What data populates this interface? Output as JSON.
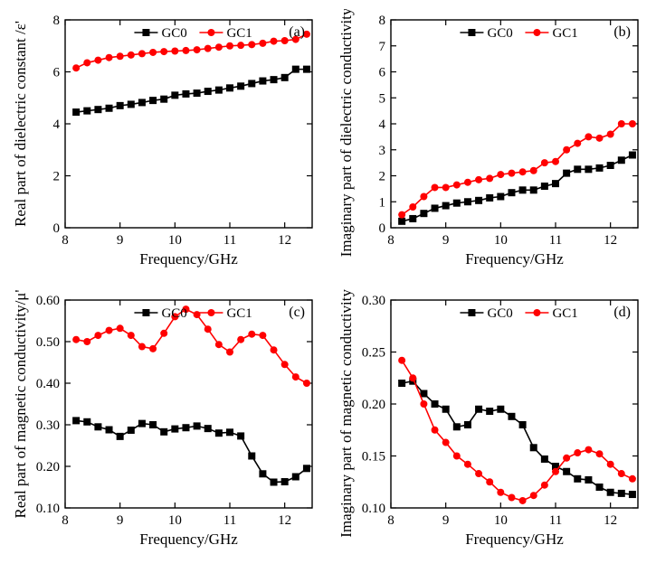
{
  "figure": {
    "background_color": "#ffffff",
    "axis_color": "#000000",
    "tick_fontsize": 15,
    "label_fontsize": 17,
    "legend_fontsize": 15,
    "marker_size": 4,
    "line_width": 1.6,
    "series_styles": {
      "GC0": {
        "color": "#000000",
        "marker": "square",
        "label": "GC0"
      },
      "GC1": {
        "color": "#ff0000",
        "marker": "circle",
        "label": "GC1"
      }
    },
    "panels": [
      {
        "id": "a",
        "tag": "(a)",
        "xlabel": "Frequency/GHz",
        "ylabel": "Real part of dielectric constant /ε'",
        "xlim": [
          8,
          12.5
        ],
        "ylim": [
          0,
          8
        ],
        "xticks": [
          8,
          9,
          10,
          11,
          12
        ],
        "yticks": [
          0,
          2,
          4,
          6,
          8
        ],
        "type": "line+marker",
        "legend_pos": "top-center",
        "series": [
          {
            "name": "GC0",
            "x": [
              8.2,
              8.4,
              8.6,
              8.8,
              9.0,
              9.2,
              9.4,
              9.6,
              9.8,
              10.0,
              10.2,
              10.4,
              10.6,
              10.8,
              11.0,
              11.2,
              11.4,
              11.6,
              11.8,
              12.0,
              12.2,
              12.4
            ],
            "y": [
              4.45,
              4.5,
              4.55,
              4.6,
              4.7,
              4.75,
              4.82,
              4.9,
              4.95,
              5.1,
              5.15,
              5.18,
              5.25,
              5.3,
              5.38,
              5.45,
              5.55,
              5.65,
              5.7,
              5.78,
              6.1,
              6.1
            ]
          },
          {
            "name": "GC1",
            "x": [
              8.2,
              8.4,
              8.6,
              8.8,
              9.0,
              9.2,
              9.4,
              9.6,
              9.8,
              10.0,
              10.2,
              10.4,
              10.6,
              10.8,
              11.0,
              11.2,
              11.4,
              11.6,
              11.8,
              12.0,
              12.2,
              12.4
            ],
            "y": [
              6.15,
              6.35,
              6.45,
              6.55,
              6.6,
              6.65,
              6.7,
              6.75,
              6.78,
              6.8,
              6.82,
              6.85,
              6.9,
              6.95,
              7.0,
              7.02,
              7.05,
              7.1,
              7.18,
              7.2,
              7.25,
              7.45
            ]
          }
        ]
      },
      {
        "id": "b",
        "tag": "(b)",
        "xlabel": "Frequency/GHz",
        "ylabel": "Imaginary part of dielectric conductivity/ε\"",
        "xlim": [
          8,
          12.5
        ],
        "ylim": [
          0,
          8
        ],
        "xticks": [
          8,
          9,
          10,
          11,
          12
        ],
        "yticks": [
          0,
          1,
          2,
          3,
          4,
          5,
          6,
          7,
          8
        ],
        "type": "line+marker",
        "legend_pos": "top-center",
        "series": [
          {
            "name": "GC0",
            "x": [
              8.2,
              8.4,
              8.6,
              8.8,
              9.0,
              9.2,
              9.4,
              9.6,
              9.8,
              10.0,
              10.2,
              10.4,
              10.6,
              10.8,
              11.0,
              11.2,
              11.4,
              11.6,
              11.8,
              12.0,
              12.2,
              12.4
            ],
            "y": [
              0.25,
              0.35,
              0.55,
              0.75,
              0.85,
              0.95,
              1.0,
              1.05,
              1.15,
              1.2,
              1.35,
              1.45,
              1.45,
              1.6,
              1.7,
              2.1,
              2.25,
              2.25,
              2.3,
              2.4,
              2.6,
              2.8
            ]
          },
          {
            "name": "GC1",
            "x": [
              8.2,
              8.4,
              8.6,
              8.8,
              9.0,
              9.2,
              9.4,
              9.6,
              9.8,
              10.0,
              10.2,
              10.4,
              10.6,
              10.8,
              11.0,
              11.2,
              11.4,
              11.6,
              11.8,
              12.0,
              12.2,
              12.4
            ],
            "y": [
              0.5,
              0.8,
              1.2,
              1.55,
              1.55,
              1.65,
              1.75,
              1.85,
              1.9,
              2.05,
              2.1,
              2.15,
              2.2,
              2.5,
              2.55,
              3.0,
              3.25,
              3.5,
              3.45,
              3.6,
              4.0,
              4.0
            ]
          }
        ]
      },
      {
        "id": "c",
        "tag": "(c)",
        "xlabel": "Frequency/GHz",
        "ylabel": "Real part of magnetic conductivity/μ'",
        "xlim": [
          8,
          12.5
        ],
        "ylim": [
          0.1,
          0.6
        ],
        "xticks": [
          8,
          9,
          10,
          11,
          12
        ],
        "yticks": [
          0.1,
          0.2,
          0.3,
          0.4,
          0.5,
          0.6
        ],
        "type": "line+marker",
        "legend_pos": "top-center",
        "series": [
          {
            "name": "GC0",
            "x": [
              8.2,
              8.4,
              8.6,
              8.8,
              9.0,
              9.2,
              9.4,
              9.6,
              9.8,
              10.0,
              10.2,
              10.4,
              10.6,
              10.8,
              11.0,
              11.2,
              11.4,
              11.6,
              11.8,
              12.0,
              12.2,
              12.4
            ],
            "y": [
              0.31,
              0.307,
              0.295,
              0.288,
              0.272,
              0.287,
              0.303,
              0.3,
              0.283,
              0.29,
              0.293,
              0.297,
              0.291,
              0.28,
              0.282,
              0.273,
              0.225,
              0.182,
              0.162,
              0.163,
              0.175,
              0.195
            ]
          },
          {
            "name": "GC1",
            "x": [
              8.2,
              8.4,
              8.6,
              8.8,
              9.0,
              9.2,
              9.4,
              9.6,
              9.8,
              10.0,
              10.2,
              10.4,
              10.6,
              10.8,
              11.0,
              11.2,
              11.4,
              11.6,
              11.8,
              12.0,
              12.2,
              12.4
            ],
            "y": [
              0.505,
              0.5,
              0.515,
              0.527,
              0.532,
              0.515,
              0.488,
              0.483,
              0.52,
              0.56,
              0.578,
              0.565,
              0.53,
              0.493,
              0.475,
              0.505,
              0.518,
              0.515,
              0.48,
              0.445,
              0.415,
              0.4
            ]
          }
        ]
      },
      {
        "id": "d",
        "tag": "(d)",
        "xlabel": "Frequency/GHz",
        "ylabel": "Imaginary part of magnetic conductivity/μ\"",
        "xlim": [
          8,
          12.5
        ],
        "ylim": [
          0.1,
          0.3
        ],
        "xticks": [
          8,
          9,
          10,
          11,
          12
        ],
        "yticks": [
          0.1,
          0.15,
          0.2,
          0.25,
          0.3
        ],
        "type": "line+marker",
        "legend_pos": "top-center",
        "series": [
          {
            "name": "GC0",
            "x": [
              8.2,
              8.4,
              8.6,
              8.8,
              9.0,
              9.2,
              9.4,
              9.6,
              9.8,
              10.0,
              10.2,
              10.4,
              10.6,
              10.8,
              11.0,
              11.2,
              11.4,
              11.6,
              11.8,
              12.0,
              12.2,
              12.4
            ],
            "y": [
              0.22,
              0.222,
              0.21,
              0.2,
              0.195,
              0.178,
              0.18,
              0.195,
              0.193,
              0.195,
              0.188,
              0.18,
              0.158,
              0.147,
              0.14,
              0.135,
              0.128,
              0.127,
              0.12,
              0.115,
              0.114,
              0.113
            ]
          },
          {
            "name": "GC1",
            "x": [
              8.2,
              8.4,
              8.6,
              8.8,
              9.0,
              9.2,
              9.4,
              9.6,
              9.8,
              10.0,
              10.2,
              10.4,
              10.6,
              10.8,
              11.0,
              11.2,
              11.4,
              11.6,
              11.8,
              12.0,
              12.2,
              12.4
            ],
            "y": [
              0.242,
              0.225,
              0.2,
              0.175,
              0.163,
              0.15,
              0.142,
              0.133,
              0.125,
              0.115,
              0.11,
              0.107,
              0.112,
              0.122,
              0.135,
              0.148,
              0.153,
              0.156,
              0.152,
              0.142,
              0.133,
              0.128
            ]
          }
        ]
      }
    ]
  }
}
